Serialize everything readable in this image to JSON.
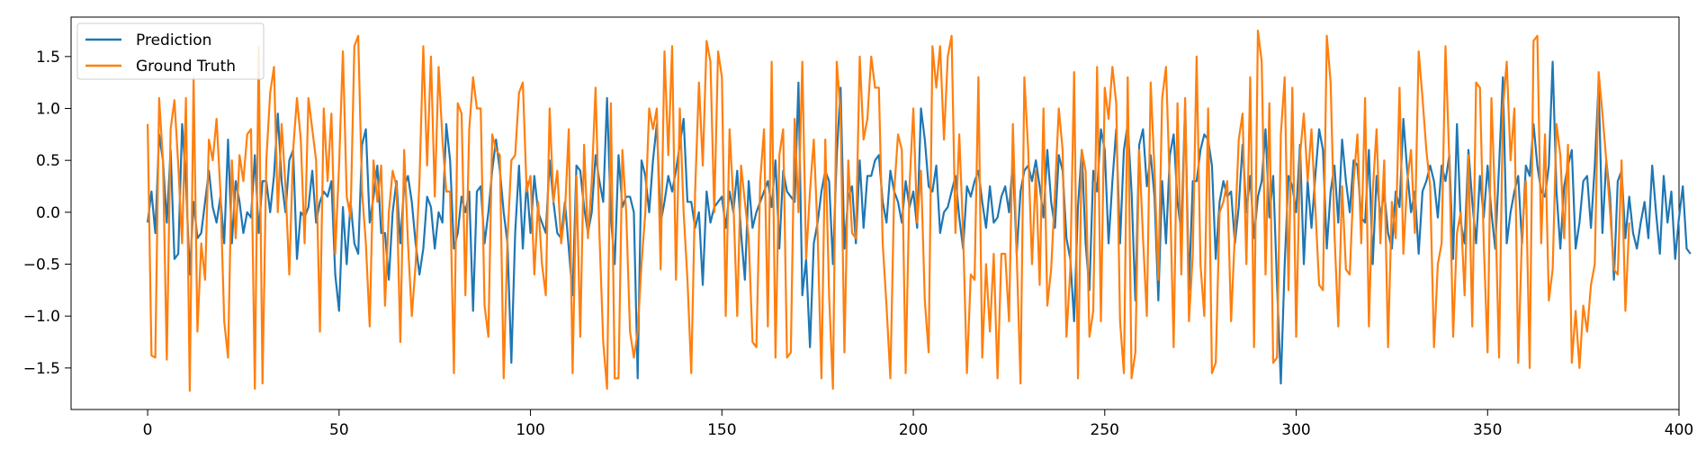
{
  "chart_data": {
    "type": "line",
    "title": "",
    "xlabel": "",
    "ylabel": "",
    "xlim": [
      -20,
      400
    ],
    "ylim": [
      -1.9,
      1.88
    ],
    "grid": false,
    "legend_position": "top-left",
    "x_ticks": [
      0,
      50,
      100,
      150,
      200,
      250,
      300,
      350,
      400
    ],
    "y_ticks": [
      -1.5,
      -1.0,
      -0.5,
      0.0,
      0.5,
      1.0,
      1.5
    ],
    "x_tick_labels": [
      "0",
      "50",
      "100",
      "150",
      "200",
      "250",
      "300",
      "350",
      "400"
    ],
    "y_tick_labels": [
      "−1.5",
      "−1.0",
      "−0.5",
      "0.0",
      "0.5",
      "1.0",
      "1.5"
    ],
    "series": [
      {
        "name": "Prediction",
        "color": "#1f77b4",
        "x_start": 0,
        "x_step": 1,
        "values": [
          -0.1,
          0.2,
          -0.2,
          0.75,
          0.5,
          -0.1,
          0.6,
          -0.45,
          -0.4,
          0.85,
          0.3,
          -0.6,
          0.1,
          -0.25,
          -0.2,
          0.1,
          0.4,
          0.05,
          -0.1,
          0.15,
          -0.3,
          0.7,
          -0.3,
          0.3,
          0.1,
          -0.2,
          0.0,
          -0.05,
          0.55,
          -0.2,
          0.3,
          0.3,
          0.0,
          0.35,
          0.95,
          0.3,
          0.0,
          0.5,
          0.6,
          -0.45,
          0.0,
          -0.05,
          0.05,
          0.4,
          -0.1,
          0.1,
          0.2,
          0.15,
          0.3,
          -0.6,
          -0.95,
          0.05,
          -0.5,
          0.1,
          -0.3,
          -0.4,
          0.65,
          0.8,
          -0.1,
          0.15,
          0.45,
          -0.2,
          -0.2,
          -0.65,
          0.0,
          0.3,
          -0.3,
          0.25,
          0.35,
          0.1,
          -0.3,
          -0.6,
          -0.35,
          0.15,
          0.05,
          -0.35,
          0.0,
          -0.1,
          0.85,
          0.5,
          -0.35,
          -0.2,
          0.15,
          0.0,
          0.2,
          -0.95,
          0.2,
          0.25,
          -0.3,
          0.0,
          0.4,
          0.7,
          0.4,
          0.0,
          -0.3,
          -1.45,
          -0.2,
          0.45,
          -0.35,
          0.3,
          -0.2,
          0.35,
          0.0,
          -0.1,
          -0.2,
          0.5,
          0.1,
          -0.2,
          -0.25,
          0.1,
          -0.35,
          -0.8,
          0.45,
          0.4,
          0.05,
          -0.2,
          0.0,
          0.55,
          0.3,
          0.1,
          1.1,
          -0.05,
          -0.5,
          0.55,
          0.05,
          0.15,
          0.15,
          0.0,
          -1.6,
          0.5,
          0.35,
          0.0,
          0.5,
          0.85,
          -0.1,
          0.1,
          0.35,
          0.2,
          0.4,
          0.65,
          0.9,
          0.1,
          0.1,
          -0.15,
          0.0,
          -0.7,
          0.2,
          -0.1,
          0.05,
          0.1,
          0.15,
          -0.15,
          0.2,
          0.0,
          0.4,
          -0.2,
          -0.65,
          0.3,
          -0.15,
          0.0,
          0.1,
          0.2,
          0.3,
          0.05,
          0.5,
          -0.35,
          0.4,
          0.2,
          0.15,
          0.1,
          1.25,
          -0.8,
          -0.45,
          -1.3,
          -0.3,
          -0.1,
          0.2,
          0.4,
          0.3,
          -0.5,
          0.55,
          1.2,
          -0.35,
          0.15,
          0.25,
          -0.3,
          0.5,
          -0.15,
          0.35,
          0.35,
          0.5,
          0.55,
          0.1,
          -0.1,
          0.4,
          0.2,
          0.1,
          -0.1,
          0.3,
          0.05,
          0.2,
          -0.15,
          1.0,
          0.7,
          0.25,
          0.2,
          0.45,
          -0.2,
          0.0,
          0.05,
          0.2,
          0.35,
          -0.05,
          -0.35,
          0.25,
          0.15,
          0.3,
          0.4,
          0.1,
          -0.15,
          0.25,
          -0.1,
          -0.05,
          0.15,
          0.25,
          0.0,
          0.5,
          -0.4,
          0.2,
          0.4,
          0.45,
          0.3,
          0.5,
          0.25,
          -0.05,
          0.6,
          0.1,
          -0.15,
          0.55,
          0.4,
          -0.25,
          -0.45,
          -1.05,
          0.05,
          0.6,
          -0.3,
          -0.75,
          0.4,
          0.2,
          0.8,
          0.6,
          -0.3,
          0.3,
          0.8,
          -0.3,
          0.6,
          0.85,
          0.2,
          -0.85,
          0.65,
          0.8,
          0.25,
          0.55,
          0.15,
          -0.85,
          0.3,
          -0.3,
          0.55,
          0.75,
          0.1,
          -0.2,
          1.05,
          -0.75,
          0.3,
          0.3,
          0.6,
          0.75,
          0.7,
          0.45,
          -0.45,
          0.1,
          0.3,
          0.15,
          0.2,
          -0.3,
          0.05,
          0.65,
          0.0,
          0.35,
          -0.25,
          0.15,
          0.3,
          0.8,
          -0.05,
          0.35,
          -0.7,
          -1.65,
          -0.5,
          0.35,
          0.25,
          0.0,
          0.65,
          -0.5,
          0.3,
          -0.15,
          0.35,
          0.8,
          0.6,
          -0.35,
          0.2,
          0.45,
          -0.1,
          0.7,
          0.3,
          0.0,
          0.5,
          0.45,
          -0.05,
          -0.1,
          0.6,
          -0.5,
          0.35,
          -0.05,
          0.2,
          -0.2,
          -0.35,
          0.2,
          0.05,
          0.9,
          0.4,
          0.0,
          0.2,
          -0.4,
          0.2,
          0.3,
          0.45,
          0.3,
          -0.05,
          0.45,
          0.3,
          0.55,
          -0.45,
          0.85,
          -0.1,
          -0.3,
          0.6,
          0.1,
          -0.3,
          0.35,
          -0.05,
          0.45,
          0.0,
          -0.35,
          0.45,
          1.3,
          -0.3,
          0.0,
          0.2,
          0.35,
          -0.3,
          0.45,
          0.35,
          0.85,
          0.45,
          0.2,
          0.15,
          0.45,
          1.45,
          0.2,
          -0.35,
          0.25,
          0.45,
          0.6,
          -0.35,
          -0.1,
          0.3,
          0.35,
          -0.15,
          0.45,
          1.25,
          -0.2,
          0.5,
          0.15,
          -0.65,
          0.3,
          0.4,
          -0.25,
          0.15,
          -0.2,
          -0.35,
          -0.1,
          0.1,
          -0.25,
          0.45,
          0.0,
          -0.4,
          0.35,
          -0.1,
          0.2,
          -0.45,
          -0.05,
          0.25,
          -0.35,
          -0.4
        ]
      },
      {
        "name": "Ground Truth",
        "color": "#ff7f0e",
        "x_start": 0,
        "x_step": 1,
        "values": [
          0.85,
          -1.38,
          -1.4,
          1.1,
          0.5,
          -1.42,
          0.8,
          1.08,
          0.45,
          -0.3,
          1.1,
          -1.72,
          1.3,
          -1.15,
          -0.3,
          -0.65,
          0.7,
          0.5,
          0.9,
          0.2,
          -1.05,
          -1.4,
          0.5,
          -0.25,
          0.55,
          0.3,
          0.75,
          0.8,
          -1.7,
          1.6,
          -1.65,
          0.5,
          1.15,
          1.4,
          0.0,
          0.85,
          0.25,
          -0.6,
          0.6,
          1.1,
          0.7,
          -0.3,
          1.1,
          0.8,
          0.5,
          -1.15,
          1.0,
          0.3,
          0.95,
          -0.4,
          0.45,
          1.55,
          0.15,
          -0.05,
          1.6,
          1.7,
          0.2,
          -0.3,
          -1.1,
          0.5,
          0.1,
          0.45,
          -0.9,
          0.0,
          0.4,
          0.25,
          -1.25,
          0.6,
          -0.3,
          -1.0,
          -0.5,
          0.3,
          1.6,
          0.45,
          1.5,
          0.15,
          1.4,
          0.7,
          0.2,
          0.2,
          -1.55,
          1.05,
          0.95,
          -0.8,
          0.8,
          1.3,
          1.0,
          1.0,
          -0.9,
          -1.2,
          0.75,
          0.6,
          0.55,
          -1.6,
          -0.25,
          0.5,
          0.55,
          1.15,
          1.25,
          0.2,
          0.35,
          -0.6,
          0.1,
          -0.5,
          -0.8,
          1.0,
          0.1,
          0.4,
          -0.3,
          0.0,
          0.8,
          -1.55,
          0.35,
          -1.2,
          0.65,
          -0.25,
          0.3,
          1.2,
          -0.2,
          -1.25,
          -1.7,
          1.05,
          -1.6,
          -1.6,
          0.6,
          0.0,
          -1.15,
          -1.4,
          -1.15,
          -0.5,
          0.0,
          1.0,
          0.8,
          1.0,
          -0.55,
          1.55,
          0.55,
          1.6,
          -0.65,
          1.0,
          0.0,
          -0.65,
          -1.55,
          0.2,
          1.25,
          0.45,
          1.65,
          1.45,
          0.0,
          1.55,
          1.3,
          -1.0,
          0.8,
          0.1,
          -1.0,
          0.45,
          0.1,
          -0.25,
          -1.25,
          -1.3,
          0.3,
          0.8,
          -1.1,
          1.45,
          -1.4,
          0.55,
          0.8,
          -1.4,
          -1.35,
          0.9,
          0.0,
          1.45,
          -0.45,
          0.2,
          0.7,
          -0.2,
          -1.6,
          0.7,
          -0.8,
          -1.7,
          1.45,
          0.95,
          -1.35,
          0.5,
          -0.2,
          -0.25,
          1.5,
          0.7,
          0.9,
          1.5,
          1.2,
          1.2,
          -0.3,
          -0.9,
          -1.6,
          0.2,
          0.75,
          0.6,
          -1.55,
          0.25,
          1.0,
          -0.1,
          0.4,
          -0.85,
          -1.35,
          1.6,
          1.2,
          1.6,
          0.7,
          1.5,
          1.7,
          -0.2,
          0.75,
          -0.2,
          -1.55,
          -0.6,
          -0.65,
          1.3,
          -1.4,
          -0.5,
          -1.15,
          -0.4,
          -1.6,
          -0.4,
          -0.4,
          -1.05,
          0.85,
          -0.4,
          -1.65,
          1.3,
          0.6,
          -0.5,
          0.4,
          -0.7,
          1.0,
          -0.9,
          -0.55,
          0.2,
          1.0,
          0.6,
          -1.2,
          -0.55,
          1.35,
          -1.6,
          0.6,
          0.4,
          -1.2,
          -0.95,
          1.4,
          -1.05,
          1.2,
          0.9,
          1.4,
          1.05,
          -1.05,
          -1.55,
          1.3,
          -1.6,
          -1.35,
          0.6,
          -0.25,
          -1.0,
          1.25,
          0.4,
          -0.65,
          1.1,
          1.4,
          0.25,
          -1.3,
          1.05,
          -0.6,
          1.1,
          -1.05,
          -0.4,
          1.5,
          -0.5,
          -1.0,
          1.0,
          -1.55,
          -1.45,
          0.0,
          0.1,
          0.3,
          -1.05,
          -0.2,
          0.7,
          0.95,
          -0.5,
          1.3,
          -1.3,
          1.75,
          1.45,
          -0.6,
          1.05,
          -1.45,
          -1.4,
          0.75,
          1.3,
          -0.75,
          1.2,
          -1.2,
          0.55,
          0.95,
          0.3,
          0.8,
          0.05,
          -0.7,
          -0.75,
          1.7,
          1.25,
          -0.2,
          -1.1,
          0.25,
          -0.55,
          -0.6,
          0.3,
          0.75,
          -0.3,
          1.1,
          -1.1,
          0.2,
          0.8,
          -0.3,
          0.5,
          -1.3,
          0.1,
          -0.25,
          1.2,
          -0.4,
          0.3,
          0.6,
          -0.2,
          1.55,
          1.1,
          0.6,
          0.25,
          -1.3,
          -0.5,
          -0.3,
          1.6,
          0.5,
          -1.2,
          -0.2,
          0.0,
          -0.8,
          0.55,
          -1.1,
          1.25,
          1.2,
          -0.3,
          -1.35,
          1.1,
          0.05,
          -1.4,
          1.0,
          1.45,
          0.5,
          1.0,
          -1.45,
          -0.2,
          0.3,
          -1.5,
          1.65,
          1.7,
          -0.3,
          0.75,
          -0.85,
          -0.55,
          0.85,
          0.55,
          -0.25,
          0.65,
          -1.45,
          -0.95,
          -1.5,
          -0.9,
          -1.15,
          -0.7,
          -0.5,
          1.35,
          0.95,
          0.5,
          0.0,
          -0.55,
          -0.6,
          0.5,
          -0.95,
          -0.1
        ]
      }
    ]
  }
}
